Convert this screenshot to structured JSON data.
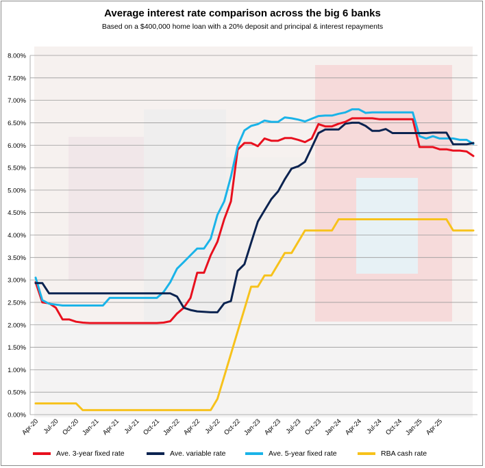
{
  "title": "Average interest rate comparison across the big 6 banks",
  "subtitle": "Based on a $400,000 home loan with a 20% deposit and principal & interest repayments",
  "colors": {
    "fixed3": "#e8101e",
    "variable": "#0b2350",
    "fixed5": "#1ab3e8",
    "cash": "#f7c21b",
    "grid": "#9a9a9a"
  },
  "legend": [
    {
      "key": "fixed3",
      "label": "Ave. 3-year fixed rate"
    },
    {
      "key": "variable",
      "label": "Ave. variable rate"
    },
    {
      "key": "fixed5",
      "label": "Ave. 5-year fixed rate"
    },
    {
      "key": "cash",
      "label": "RBA cash rate"
    }
  ],
  "chart_data": {
    "type": "line",
    "title": "Average interest rate comparison across the big 6 banks",
    "subtitle": "Based on a $400,000 home loan with a 20% deposit and principal & interest repayments",
    "xlabel": "",
    "ylabel": "",
    "ylim": [
      0,
      8
    ],
    "grid": true,
    "legend_position": "bottom",
    "y_ticks": [
      "0.00%",
      "0.50%",
      "1.00%",
      "1.50%",
      "2.00%",
      "2.50%",
      "3.00%",
      "3.50%",
      "4.00%",
      "4.50%",
      "5.00%",
      "5.50%",
      "6.00%",
      "6.50%",
      "7.00%",
      "7.50%",
      "8.00%"
    ],
    "x_ticks": [
      "Apr-20",
      "Jul-20",
      "Oct-20",
      "Jan-21",
      "Apr-21",
      "Jul-21",
      "Oct-21",
      "Jan-22",
      "Apr-22",
      "Jul-22",
      "Oct-22",
      "Jan-23",
      "Apr-23",
      "Jul-23",
      "Oct-23",
      "Jan-24",
      "Apr-24",
      "Jul-24",
      "Oct-24",
      "Jan-25",
      "Apr-25"
    ],
    "x_start": "Apr-20",
    "series": [
      {
        "name": "Ave. 3-year fixed rate",
        "key": "fixed3",
        "points": [
          [
            0,
            2.95
          ],
          [
            1,
            2.5
          ],
          [
            2,
            2.48
          ],
          [
            3,
            2.38
          ],
          [
            4,
            2.12
          ],
          [
            5,
            2.12
          ],
          [
            6,
            2.07
          ],
          [
            7,
            2.05
          ],
          [
            8,
            2.04
          ],
          [
            10,
            2.04
          ],
          [
            12,
            2.04
          ],
          [
            14,
            2.04
          ],
          [
            16,
            2.04
          ],
          [
            18,
            2.04
          ],
          [
            19,
            2.05
          ],
          [
            20,
            2.08
          ],
          [
            21,
            2.25
          ],
          [
            22,
            2.38
          ],
          [
            23,
            2.6
          ],
          [
            24,
            3.16
          ],
          [
            25,
            3.16
          ],
          [
            26,
            3.55
          ],
          [
            27,
            3.85
          ],
          [
            28,
            4.35
          ],
          [
            29,
            4.75
          ],
          [
            30,
            5.9
          ],
          [
            31,
            6.05
          ],
          [
            32,
            6.05
          ],
          [
            33,
            5.98
          ],
          [
            34,
            6.15
          ],
          [
            35,
            6.1
          ],
          [
            36,
            6.1
          ],
          [
            37,
            6.16
          ],
          [
            38,
            6.16
          ],
          [
            39,
            6.12
          ],
          [
            40,
            6.07
          ],
          [
            41,
            6.15
          ],
          [
            42,
            6.47
          ],
          [
            43,
            6.42
          ],
          [
            44,
            6.42
          ],
          [
            45,
            6.48
          ],
          [
            46,
            6.52
          ],
          [
            47,
            6.6
          ],
          [
            48,
            6.6
          ],
          [
            49,
            6.6
          ],
          [
            50,
            6.6
          ],
          [
            51,
            6.58
          ],
          [
            52,
            6.58
          ],
          [
            53,
            6.58
          ],
          [
            54,
            6.58
          ],
          [
            55,
            6.58
          ],
          [
            56,
            6.58
          ],
          [
            57,
            5.96
          ],
          [
            58,
            5.96
          ],
          [
            59,
            5.96
          ],
          [
            60,
            5.91
          ],
          [
            61,
            5.91
          ],
          [
            62,
            5.88
          ],
          [
            63,
            5.88
          ],
          [
            64,
            5.86
          ],
          [
            65,
            5.76
          ]
        ]
      },
      {
        "name": "Ave. variable rate",
        "key": "variable",
        "points": [
          [
            0,
            2.93
          ],
          [
            1,
            2.93
          ],
          [
            2,
            2.7
          ],
          [
            3,
            2.7
          ],
          [
            4,
            2.7
          ],
          [
            6,
            2.7
          ],
          [
            8,
            2.7
          ],
          [
            10,
            2.7
          ],
          [
            12,
            2.7
          ],
          [
            14,
            2.7
          ],
          [
            16,
            2.7
          ],
          [
            18,
            2.7
          ],
          [
            19,
            2.7
          ],
          [
            20,
            2.7
          ],
          [
            21,
            2.63
          ],
          [
            22,
            2.38
          ],
          [
            23,
            2.33
          ],
          [
            24,
            2.3
          ],
          [
            25,
            2.29
          ],
          [
            26,
            2.28
          ],
          [
            27,
            2.28
          ],
          [
            28,
            2.48
          ],
          [
            29,
            2.53
          ],
          [
            30,
            3.2
          ],
          [
            31,
            3.35
          ],
          [
            32,
            3.83
          ],
          [
            33,
            4.3
          ],
          [
            34,
            4.55
          ],
          [
            35,
            4.8
          ],
          [
            36,
            4.97
          ],
          [
            37,
            5.24
          ],
          [
            38,
            5.48
          ],
          [
            39,
            5.53
          ],
          [
            40,
            5.63
          ],
          [
            41,
            5.95
          ],
          [
            42,
            6.27
          ],
          [
            43,
            6.35
          ],
          [
            44,
            6.35
          ],
          [
            45,
            6.35
          ],
          [
            46,
            6.48
          ],
          [
            47,
            6.5
          ],
          [
            48,
            6.5
          ],
          [
            49,
            6.43
          ],
          [
            50,
            6.32
          ],
          [
            51,
            6.32
          ],
          [
            52,
            6.36
          ],
          [
            53,
            6.27
          ],
          [
            54,
            6.27
          ],
          [
            55,
            6.27
          ],
          [
            56,
            6.27
          ],
          [
            57,
            6.27
          ],
          [
            58,
            6.27
          ],
          [
            59,
            6.28
          ],
          [
            60,
            6.28
          ],
          [
            61,
            6.28
          ],
          [
            62,
            6.02
          ],
          [
            63,
            6.02
          ],
          [
            64,
            6.02
          ],
          [
            65,
            6.05
          ]
        ]
      },
      {
        "name": "Ave. 5-year fixed rate",
        "key": "fixed5",
        "points": [
          [
            0,
            3.05
          ],
          [
            1,
            2.55
          ],
          [
            2,
            2.47
          ],
          [
            3,
            2.45
          ],
          [
            4,
            2.43
          ],
          [
            6,
            2.43
          ],
          [
            8,
            2.43
          ],
          [
            10,
            2.43
          ],
          [
            11,
            2.6
          ],
          [
            12,
            2.6
          ],
          [
            14,
            2.6
          ],
          [
            16,
            2.6
          ],
          [
            18,
            2.6
          ],
          [
            19,
            2.73
          ],
          [
            20,
            2.95
          ],
          [
            21,
            3.25
          ],
          [
            22,
            3.4
          ],
          [
            23,
            3.55
          ],
          [
            24,
            3.7
          ],
          [
            25,
            3.7
          ],
          [
            26,
            3.92
          ],
          [
            27,
            4.45
          ],
          [
            28,
            4.75
          ],
          [
            29,
            5.3
          ],
          [
            30,
            5.98
          ],
          [
            31,
            6.33
          ],
          [
            32,
            6.43
          ],
          [
            33,
            6.47
          ],
          [
            34,
            6.55
          ],
          [
            35,
            6.52
          ],
          [
            36,
            6.52
          ],
          [
            37,
            6.62
          ],
          [
            38,
            6.6
          ],
          [
            39,
            6.57
          ],
          [
            40,
            6.53
          ],
          [
            41,
            6.59
          ],
          [
            42,
            6.65
          ],
          [
            43,
            6.66
          ],
          [
            44,
            6.66
          ],
          [
            45,
            6.7
          ],
          [
            46,
            6.73
          ],
          [
            47,
            6.8
          ],
          [
            48,
            6.8
          ],
          [
            49,
            6.72
          ],
          [
            50,
            6.73
          ],
          [
            51,
            6.73
          ],
          [
            52,
            6.73
          ],
          [
            53,
            6.73
          ],
          [
            54,
            6.73
          ],
          [
            55,
            6.73
          ],
          [
            56,
            6.73
          ],
          [
            57,
            6.2
          ],
          [
            58,
            6.15
          ],
          [
            59,
            6.2
          ],
          [
            60,
            6.15
          ],
          [
            61,
            6.15
          ],
          [
            62,
            6.15
          ],
          [
            63,
            6.12
          ],
          [
            64,
            6.12
          ],
          [
            65,
            6.03
          ]
        ]
      },
      {
        "name": "RBA cash rate",
        "key": "cash",
        "points": [
          [
            0,
            0.25
          ],
          [
            6,
            0.25
          ],
          [
            7,
            0.1
          ],
          [
            10,
            0.1
          ],
          [
            14,
            0.1
          ],
          [
            18,
            0.1
          ],
          [
            22,
            0.1
          ],
          [
            25,
            0.1
          ],
          [
            26,
            0.1
          ],
          [
            27,
            0.35
          ],
          [
            28,
            0.85
          ],
          [
            29,
            1.35
          ],
          [
            30,
            1.85
          ],
          [
            31,
            2.35
          ],
          [
            32,
            2.85
          ],
          [
            33,
            2.85
          ],
          [
            34,
            3.1
          ],
          [
            35,
            3.1
          ],
          [
            36,
            3.35
          ],
          [
            37,
            3.6
          ],
          [
            38,
            3.6
          ],
          [
            39,
            3.85
          ],
          [
            40,
            4.1
          ],
          [
            41,
            4.1
          ],
          [
            43,
            4.1
          ],
          [
            44,
            4.1
          ],
          [
            45,
            4.35
          ],
          [
            48,
            4.35
          ],
          [
            52,
            4.35
          ],
          [
            56,
            4.35
          ],
          [
            59,
            4.35
          ],
          [
            61,
            4.35
          ],
          [
            62,
            4.1
          ],
          [
            65,
            4.1
          ]
        ]
      }
    ]
  }
}
